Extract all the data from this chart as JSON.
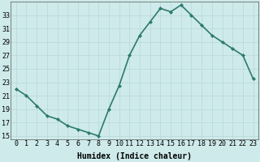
{
  "x": [
    0,
    1,
    2,
    3,
    4,
    5,
    6,
    7,
    8,
    9,
    10,
    11,
    12,
    13,
    14,
    15,
    16,
    17,
    18,
    19,
    20,
    21,
    22,
    23
  ],
  "y": [
    22,
    21,
    19.5,
    18,
    17.5,
    16.5,
    16,
    15.5,
    15,
    19,
    22.5,
    27,
    30,
    32,
    34,
    33.5,
    34.5,
    33,
    31.5,
    30,
    29,
    28,
    27,
    23.5
  ],
  "line_color": "#2d7a6e",
  "marker": "D",
  "marker_size": 2.0,
  "bg_color": "#ceeaea",
  "grid_color": "#b8d8d8",
  "xlabel": "Humidex (Indice chaleur)",
  "xlim": [
    -0.5,
    23.5
  ],
  "ylim": [
    14.5,
    35
  ],
  "yticks": [
    15,
    17,
    19,
    21,
    23,
    25,
    27,
    29,
    31,
    33
  ],
  "xtick_labels": [
    "0",
    "1",
    "2",
    "3",
    "4",
    "5",
    "6",
    "7",
    "8",
    "9",
    "10",
    "11",
    "12",
    "13",
    "14",
    "15",
    "16",
    "17",
    "18",
    "19",
    "20",
    "21",
    "22",
    "23"
  ],
  "xlabel_fontsize": 7,
  "tick_fontsize": 6,
  "line_width": 1.2
}
